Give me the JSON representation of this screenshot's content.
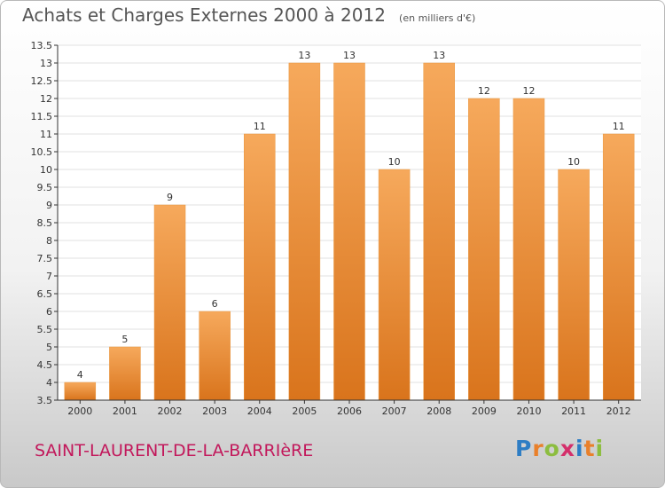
{
  "title": "Achats et Charges Externes 2000 à 2012",
  "unit": "(en milliers d'€)",
  "commune": "SAINT-LAURENT-DE-LA-BARRIèRE",
  "logo": {
    "letters": [
      "P",
      "r",
      "o",
      "x",
      "i",
      "t",
      "i"
    ],
    "colors": [
      "#2e7dc4",
      "#e9802a",
      "#8cbd3f",
      "#d42f6b",
      "#2e7dc4",
      "#e9802a",
      "#8cbd3f"
    ]
  },
  "colors": {
    "bar": "#f0902e",
    "bar_light": "#f6a95c",
    "bar_dark": "#d9741c",
    "axis": "#333333",
    "grid": "#e1e1e1"
  },
  "chart_data": {
    "type": "bar",
    "categories": [
      "2000",
      "2001",
      "2002",
      "2003",
      "2004",
      "2005",
      "2006",
      "2007",
      "2008",
      "2009",
      "2010",
      "2011",
      "2012"
    ],
    "values": [
      4,
      5,
      9,
      6,
      11,
      13,
      13,
      10,
      13,
      12,
      12,
      10,
      11
    ],
    "labels": [
      "4",
      "5",
      "9",
      "6",
      "11",
      "13",
      "13",
      "10",
      "13",
      "12",
      "12",
      "10",
      "11"
    ],
    "ylim": [
      3.5,
      13.5
    ],
    "yticks": [
      3.5,
      4,
      4.5,
      5,
      5.5,
      6,
      6.5,
      7,
      7.5,
      8,
      8.5,
      9,
      9.5,
      10,
      10.5,
      11,
      11.5,
      12,
      12.5,
      13,
      13.5
    ],
    "ytick_labels": [
      "3.5",
      "4",
      "4.5",
      "5",
      "5.5",
      "6",
      "6.5",
      "7",
      "7.5",
      "8",
      "8.5",
      "9",
      "9.5",
      "10",
      "10.5",
      "11",
      "11.5",
      "12",
      "12.5",
      "13",
      "13.5"
    ],
    "grid": true,
    "xlabel": "",
    "ylabel": ""
  }
}
